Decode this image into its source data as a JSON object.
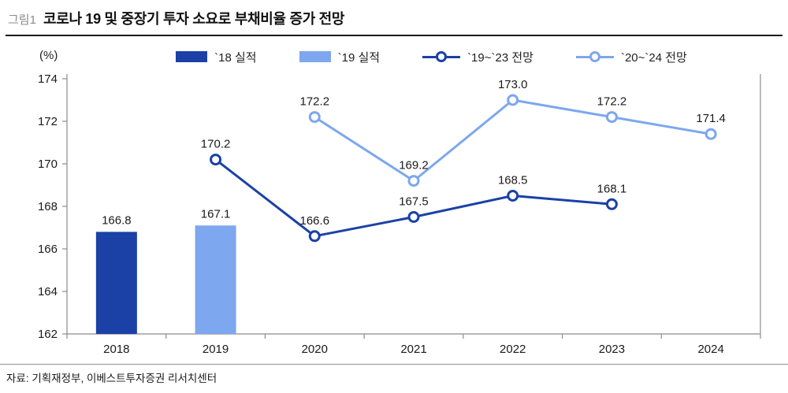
{
  "header": {
    "figure_label": "그림1"
  },
  "footer": {
    "source": "자료: 기획재정부, 이베스트투자증권 리서치센터"
  },
  "colors": {
    "dark_blue": "#1B41A6",
    "light_blue": "#7DA7EE",
    "axis": "#8c8c8c",
    "text": "#1a1a1a"
  },
  "chart_data": {
    "type": "bar+line",
    "title": "코로나 19 및 중장기 투자 소요로 부채비율 증가 전망",
    "unit_label": "(%)",
    "xlabel": "",
    "ylabel": "(%)",
    "categories": [
      "2018",
      "2019",
      "2020",
      "2021",
      "2022",
      "2023",
      "2024"
    ],
    "ylim": [
      162,
      174
    ],
    "yticks": [
      162,
      164,
      166,
      168,
      170,
      172,
      174
    ],
    "grid": false,
    "legend_position": "top",
    "legend": [
      {
        "label": "`18 실적",
        "type": "bar",
        "color": "dark_blue"
      },
      {
        "label": "`19 실적",
        "type": "bar",
        "color": "light_blue"
      },
      {
        "label": "`19~`23 전망",
        "type": "line",
        "color": "dark_blue"
      },
      {
        "label": "`20~`24 전망",
        "type": "line",
        "color": "light_blue"
      }
    ],
    "series": [
      {
        "name": "`18 실적",
        "key": "actual-2018",
        "type": "bar",
        "color": "dark_blue",
        "values": [
          166.8,
          null,
          null,
          null,
          null,
          null,
          null
        ],
        "labels": [
          "166.8",
          null,
          null,
          null,
          null,
          null,
          null
        ]
      },
      {
        "name": "`19 실적",
        "key": "actual-2019",
        "type": "bar",
        "color": "light_blue",
        "values": [
          null,
          167.1,
          null,
          null,
          null,
          null,
          null
        ],
        "labels": [
          null,
          "167.1",
          null,
          null,
          null,
          null,
          null
        ]
      },
      {
        "name": "`20~`24 전망",
        "key": "forecast-20-24",
        "type": "line",
        "color": "light_blue",
        "values": [
          null,
          null,
          172.2,
          169.2,
          173.0,
          172.2,
          171.4
        ],
        "labels": [
          null,
          null,
          "172.2",
          "169.2",
          "173.0",
          "172.2",
          "171.4"
        ]
      },
      {
        "name": "`19~`23 전망",
        "key": "forecast-19-23",
        "type": "line",
        "color": "dark_blue",
        "values": [
          null,
          170.2,
          166.6,
          167.5,
          168.5,
          168.1,
          null
        ],
        "labels": [
          null,
          "170.2",
          "166.6",
          "167.5",
          "168.5",
          "168.1",
          null
        ]
      }
    ]
  }
}
